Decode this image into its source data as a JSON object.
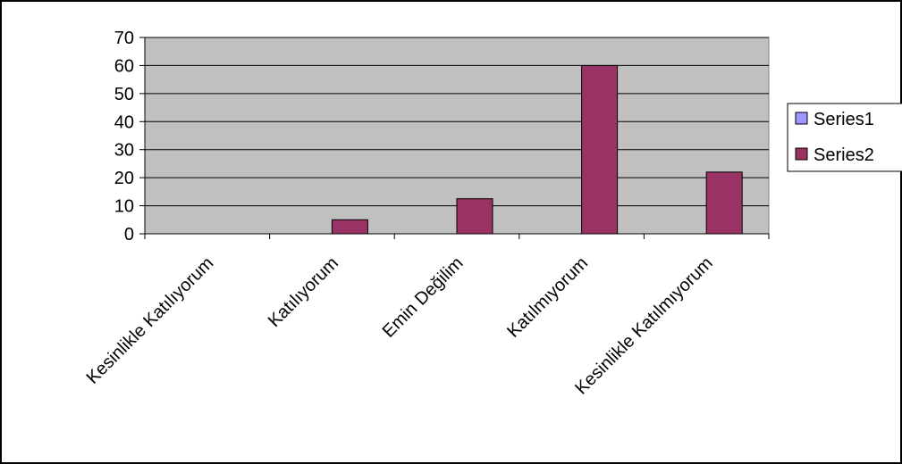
{
  "chart_data": {
    "type": "bar",
    "categories": [
      "Kesinlikle Katılıyorum",
      "Katılıyorum",
      "Emin Değilim",
      "Katılmıyorum",
      "Kesinlikle Katılmıyorum"
    ],
    "series": [
      {
        "name": "Series1",
        "values": [
          0,
          0,
          0,
          0,
          0
        ],
        "color": "#9999ff"
      },
      {
        "name": "Series2",
        "values": [
          0,
          5,
          12.5,
          60,
          22
        ],
        "color": "#993366"
      }
    ],
    "ylim": [
      0,
      70
    ],
    "yticks": [
      0,
      10,
      20,
      30,
      40,
      50,
      60,
      70
    ],
    "grid": true,
    "plot_background": "#c0c0c0",
    "legend_position": "right"
  }
}
